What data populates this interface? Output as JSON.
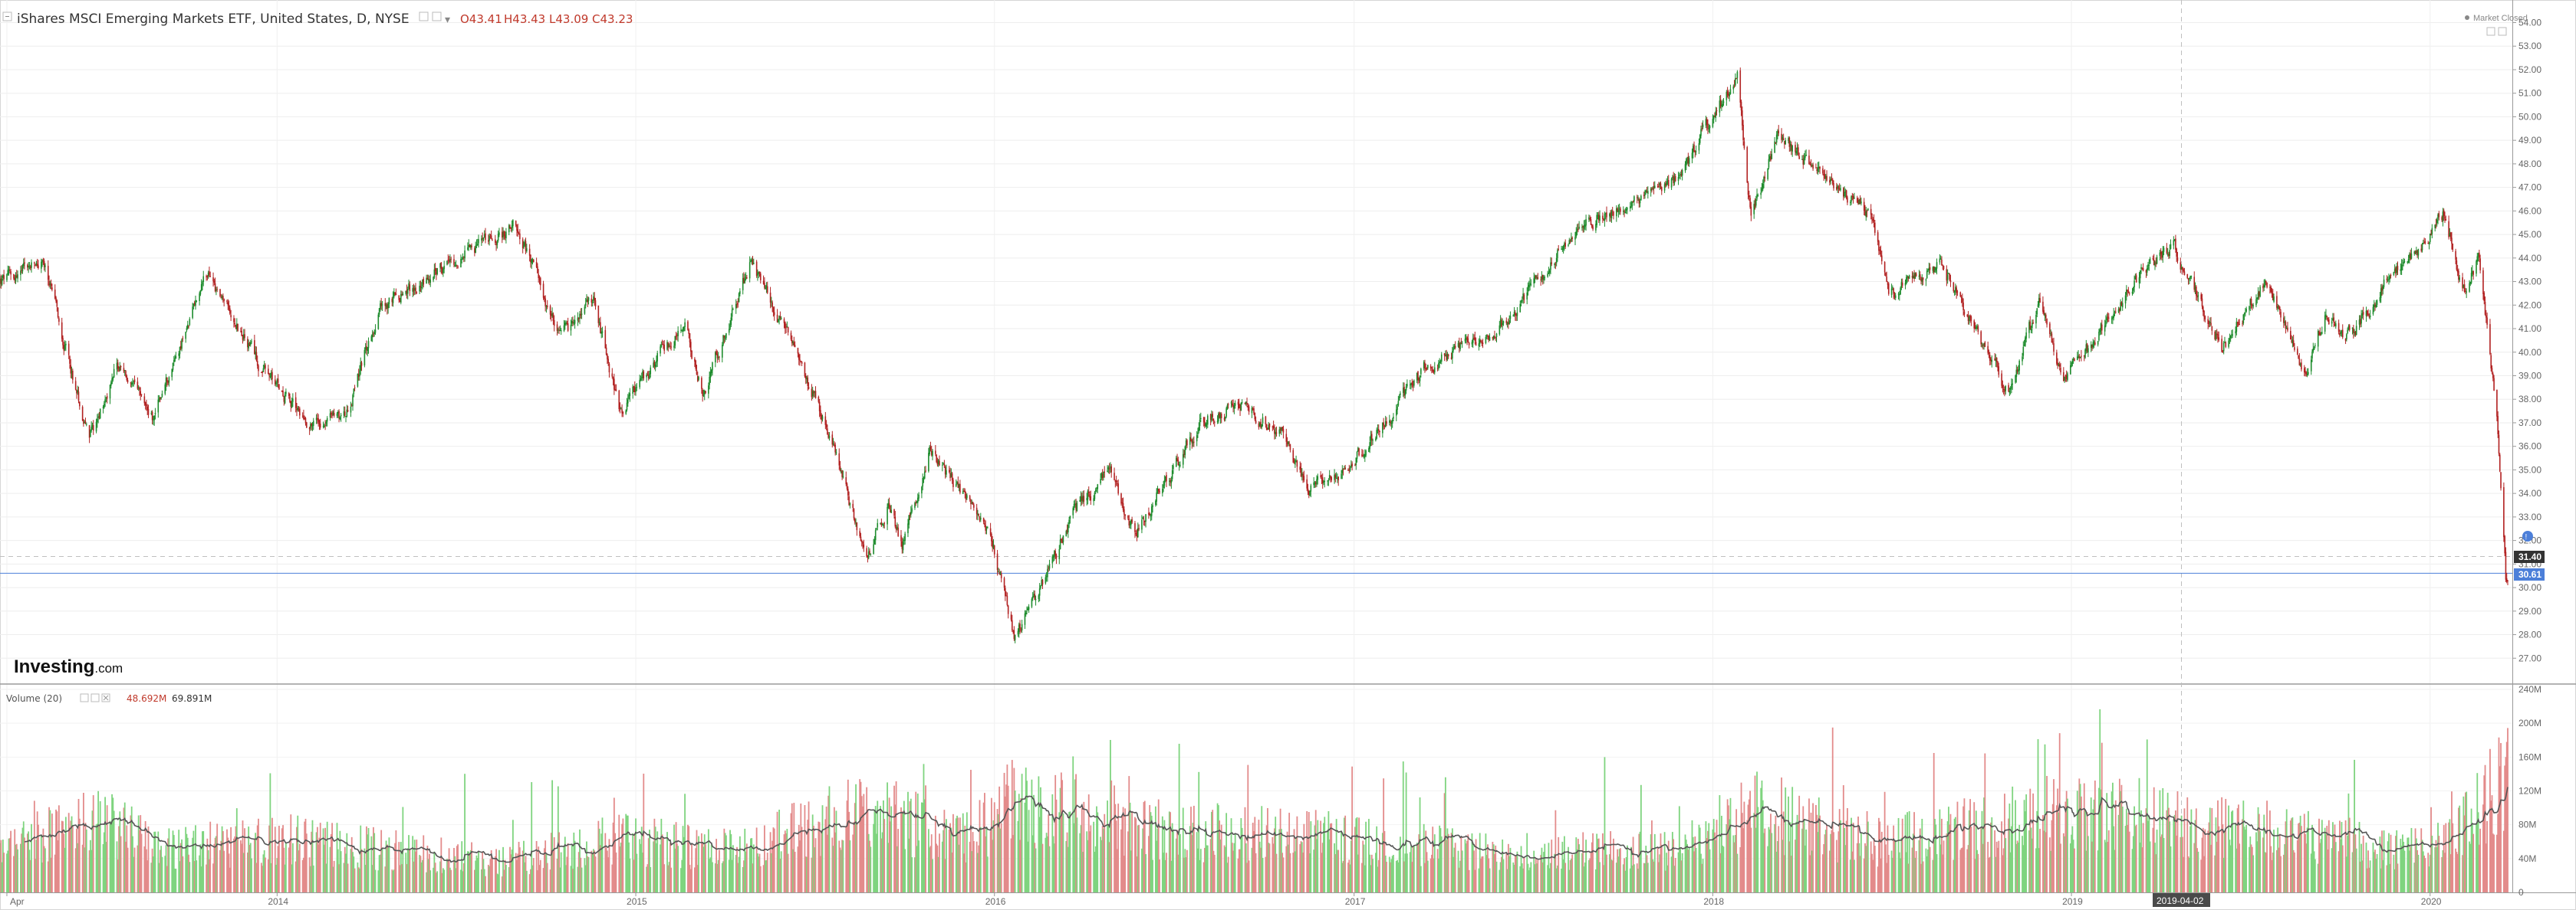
{
  "header": {
    "title": "iShares MSCI Emerging Markets ETF, United States, D, NYSE",
    "open": "O43.41",
    "high": "H43.43",
    "low": "L43.09",
    "close": "C43.23"
  },
  "market_status": "Market Closed",
  "volume_header": {
    "label": "Volume (20)",
    "volume": "48.692M",
    "ma": "69.891M"
  },
  "logo": {
    "primary": "Investing",
    "suffix": ".com"
  },
  "price_tags": {
    "last": "31.40",
    "current": "30.61"
  },
  "crosshair_date_label": "2019-04-02",
  "colors": {
    "up": "#1e8c2d",
    "down": "#b22222",
    "vol_up": "#7fd47f",
    "vol_down": "#e38b8b",
    "ma_line": "#555555",
    "current_line": "#4c7fd9",
    "last_tag": "#333333"
  },
  "chart_data": [
    {
      "type": "candlestick",
      "title": "iShares MSCI Emerging Markets ETF, United States, D, NYSE",
      "x_range": [
        "2013-03-25",
        "2020-03-20"
      ],
      "ylim": [
        26.0,
        54.7
      ],
      "y_ticks": [
        "27.00",
        "28.00",
        "29.00",
        "30.00",
        "31.00",
        "32.00",
        "33.00",
        "34.00",
        "35.00",
        "36.00",
        "37.00",
        "38.00",
        "39.00",
        "40.00",
        "41.00",
        "42.00",
        "43.00",
        "44.00",
        "45.00",
        "46.00",
        "47.00",
        "48.00",
        "49.00",
        "50.00",
        "51.00",
        "52.00",
        "53.00",
        "54.00"
      ],
      "x_ticks": [
        {
          "date": "2013-04-01",
          "label": "Apr"
        },
        {
          "date": "2014-01-01",
          "label": "2014"
        },
        {
          "date": "2015-01-01",
          "label": "2015"
        },
        {
          "date": "2016-01-01",
          "label": "2016"
        },
        {
          "date": "2017-01-01",
          "label": "2017"
        },
        {
          "date": "2018-01-01",
          "label": "2018"
        },
        {
          "date": "2019-01-01",
          "label": "2019"
        },
        {
          "date": "2020-01-01",
          "label": "2020"
        }
      ],
      "close_path_anchors": [
        [
          "2013-03-25",
          43.0
        ],
        [
          "2013-05-08",
          43.8
        ],
        [
          "2013-06-24",
          36.3
        ],
        [
          "2013-07-22",
          39.5
        ],
        [
          "2013-08-27",
          37.2
        ],
        [
          "2013-10-22",
          43.3
        ],
        [
          "2013-12-18",
          39.2
        ],
        [
          "2014-02-03",
          37.0
        ],
        [
          "2014-03-14",
          37.5
        ],
        [
          "2014-04-14",
          41.8
        ],
        [
          "2014-06-27",
          43.8
        ],
        [
          "2014-09-03",
          45.4
        ],
        [
          "2014-10-16",
          40.5
        ],
        [
          "2014-11-19",
          42.2
        ],
        [
          "2014-12-16",
          37.5
        ],
        [
          "2015-01-20",
          39.6
        ],
        [
          "2015-02-20",
          41.2
        ],
        [
          "2015-03-11",
          38.2
        ],
        [
          "2015-04-27",
          43.8
        ],
        [
          "2015-05-26",
          41.6
        ],
        [
          "2015-07-08",
          37.5
        ],
        [
          "2015-08-24",
          31.3
        ],
        [
          "2015-09-14",
          33.5
        ],
        [
          "2015-09-29",
          31.9
        ],
        [
          "2015-10-27",
          35.8
        ],
        [
          "2015-11-30",
          34.0
        ],
        [
          "2015-12-30",
          32.0
        ],
        [
          "2016-01-21",
          28.0
        ],
        [
          "2016-02-17",
          29.8
        ],
        [
          "2016-03-18",
          33.0
        ],
        [
          "2016-04-27",
          35.0
        ],
        [
          "2016-05-24",
          32.2
        ],
        [
          "2016-06-15",
          34.0
        ],
        [
          "2016-07-28",
          37.0
        ],
        [
          "2016-09-07",
          37.8
        ],
        [
          "2016-10-20",
          36.5
        ],
        [
          "2016-11-15",
          34.2
        ],
        [
          "2016-12-28",
          35.1
        ],
        [
          "2017-03-16",
          39.4
        ],
        [
          "2017-06-02",
          41.2
        ],
        [
          "2017-07-25",
          44.1
        ],
        [
          "2017-09-05",
          45.8
        ],
        [
          "2017-10-27",
          46.6
        ],
        [
          "2017-11-27",
          47.5
        ],
        [
          "2018-01-26",
          51.7
        ],
        [
          "2018-02-09",
          45.6
        ],
        [
          "2018-03-09",
          49.3
        ],
        [
          "2018-04-25",
          47.3
        ],
        [
          "2018-06-11",
          45.8
        ],
        [
          "2018-06-28",
          42.4
        ],
        [
          "2018-08-20",
          43.8
        ],
        [
          "2018-10-29",
          38.3
        ],
        [
          "2018-11-30",
          42.1
        ],
        [
          "2018-12-24",
          38.7
        ],
        [
          "2019-03-20",
          43.7
        ],
        [
          "2019-04-16",
          44.4
        ],
        [
          "2019-06-03",
          40.2
        ],
        [
          "2019-07-18",
          43.1
        ],
        [
          "2019-08-26",
          39.1
        ],
        [
          "2019-09-16",
          41.6
        ],
        [
          "2019-10-07",
          40.5
        ],
        [
          "2019-11-18",
          43.0
        ],
        [
          "2019-12-30",
          44.9
        ],
        [
          "2020-01-17",
          46.0
        ],
        [
          "2020-02-03",
          42.4
        ],
        [
          "2020-02-20",
          44.0
        ],
        [
          "2020-03-09",
          37.0
        ],
        [
          "2020-03-18",
          30.3
        ],
        [
          "2020-03-20",
          30.6
        ]
      ]
    },
    {
      "type": "bar",
      "title": "Volume (20)",
      "ylim": [
        0,
        240
      ],
      "y_unit": "M",
      "y_ticks": [
        "0",
        "40M",
        "80M",
        "120M",
        "160M",
        "200M",
        "240M"
      ],
      "moving_average_window": 20,
      "volume_path_anchors": [
        [
          "2013-03-25",
          55
        ],
        [
          "2013-06-24",
          95
        ],
        [
          "2013-09-10",
          60
        ],
        [
          "2014-01-27",
          70
        ],
        [
          "2014-05-01",
          55
        ],
        [
          "2014-08-15",
          40
        ],
        [
          "2014-12-15",
          70
        ],
        [
          "2015-04-15",
          55
        ],
        [
          "2015-08-24",
          110
        ],
        [
          "2015-12-01",
          70
        ],
        [
          "2016-01-21",
          120
        ],
        [
          "2016-06-24",
          80
        ],
        [
          "2016-11-09",
          75
        ],
        [
          "2017-05-01",
          55
        ],
        [
          "2017-12-01",
          55
        ],
        [
          "2018-02-06",
          110
        ],
        [
          "2018-06-15",
          65
        ],
        [
          "2018-10-15",
          90
        ],
        [
          "2019-01-02",
          110
        ],
        [
          "2019-05-15",
          85
        ],
        [
          "2019-08-15",
          80
        ],
        [
          "2019-12-01",
          55
        ],
        [
          "2020-02-01",
          80
        ],
        [
          "2020-03-16",
          160
        ]
      ]
    }
  ]
}
